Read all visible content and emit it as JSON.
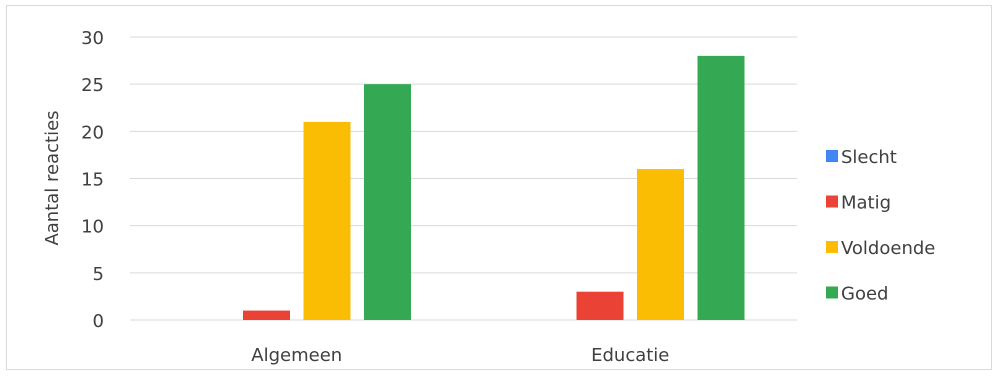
{
  "chart_data": {
    "type": "bar",
    "title": "",
    "xlabel": "",
    "ylabel": "Aantal reacties",
    "categories": [
      "Algemeen",
      "Educatie"
    ],
    "ylim": [
      0,
      30
    ],
    "yticks": [
      "0",
      "5",
      "10",
      "15",
      "20",
      "25",
      "30"
    ],
    "grid": true,
    "legend_position": "right",
    "series": [
      {
        "name": "Slecht",
        "color": "#4285F4",
        "values": [
          0,
          0
        ]
      },
      {
        "name": "Matig",
        "color": "#EA4335",
        "values": [
          1,
          3
        ]
      },
      {
        "name": "Voldoende",
        "color": "#FBBC04",
        "values": [
          21,
          16
        ]
      },
      {
        "name": "Goed",
        "color": "#34A853",
        "values": [
          25,
          28
        ]
      }
    ]
  }
}
